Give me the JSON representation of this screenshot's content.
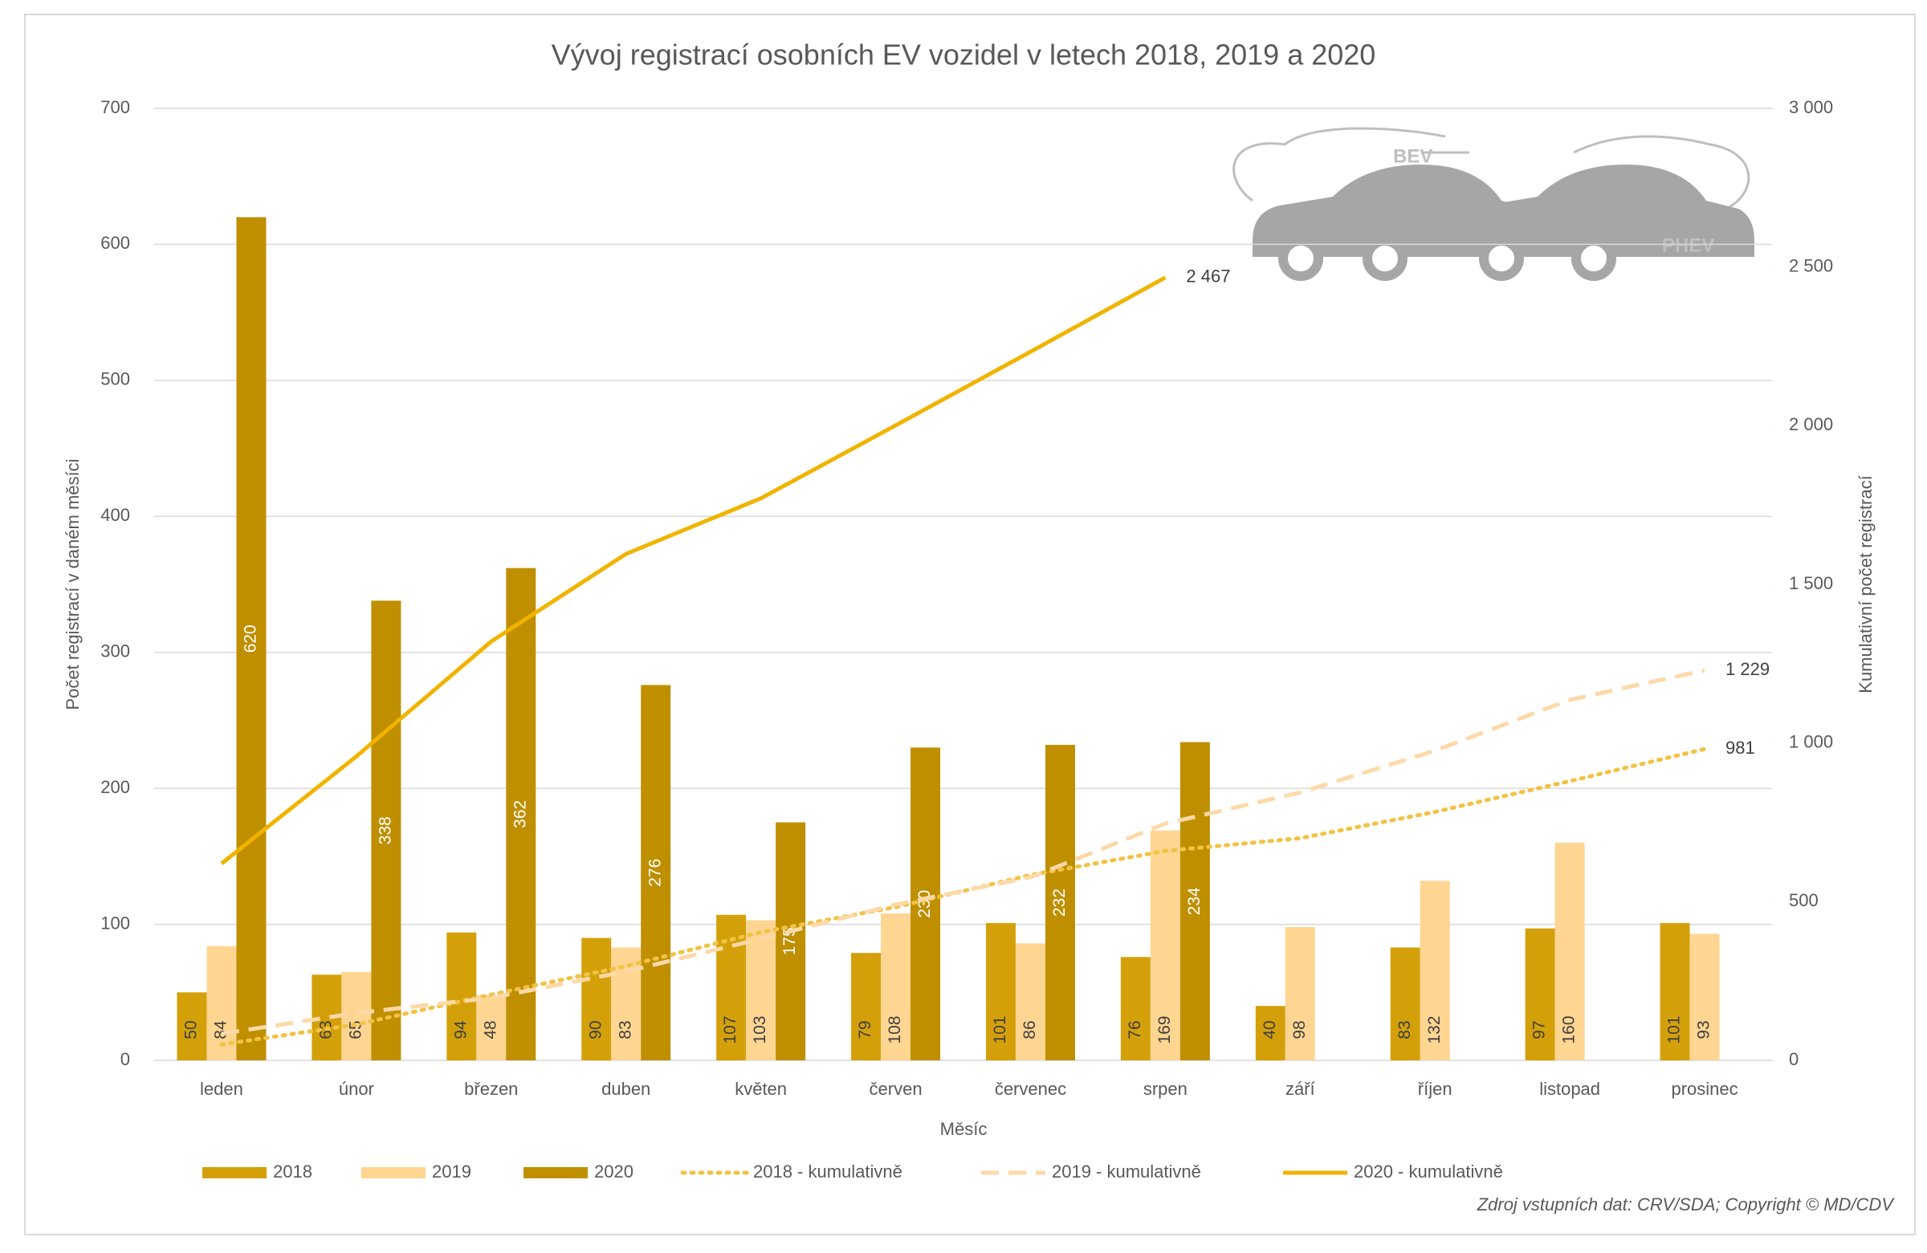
{
  "chart_data": {
    "type": "bar_line",
    "title": "Vývoj registrací osobních EV vozidel v letech 2018, 2019 a 2020",
    "x_label": "Měsíc",
    "y_label": "Počet registrací v daném měsíci",
    "y2_label": "Kumulativní počet registrací",
    "source": "Zdroj vstupních dat: CRV/SDA; Copyright © MD/CDV",
    "icon_labels": [
      "BEV",
      "PHEV"
    ],
    "categories": [
      "leden",
      "únor",
      "březen",
      "duben",
      "květen",
      "červen",
      "červenec",
      "srpen",
      "září",
      "říjen",
      "listopad",
      "prosinec"
    ],
    "series": [
      {
        "name": "2018",
        "kind": "bar",
        "color": "#d4a00a",
        "values": [
          50,
          63,
          94,
          90,
          107,
          79,
          101,
          76,
          40,
          83,
          97,
          101
        ]
      },
      {
        "name": "2019",
        "kind": "bar",
        "color": "#ffd592",
        "values": [
          84,
          65,
          48,
          83,
          103,
          108,
          86,
          169,
          98,
          132,
          160,
          93
        ]
      },
      {
        "name": "2020",
        "kind": "bar",
        "color": "#bf8f00",
        "values": [
          620,
          338,
          362,
          276,
          175,
          230,
          232,
          234,
          null,
          null,
          null,
          null
        ]
      },
      {
        "name": "2018 - kumulativně",
        "kind": "line",
        "dash": "dotted",
        "axis": "y2",
        "color": "#f2c244",
        "values": [
          50,
          113,
          207,
          297,
          404,
          483,
          584,
          660,
          700,
          783,
          880,
          981
        ],
        "value_labels": [
          null,
          null,
          null,
          null,
          null,
          null,
          null,
          null,
          null,
          null,
          null,
          "981"
        ]
      },
      {
        "name": "2019 - kumulativně",
        "kind": "line",
        "dash": "dashed",
        "axis": "y2",
        "color": "#fdd9a8",
        "values": [
          84,
          149,
          197,
          280,
          383,
          491,
          577,
          746,
          844,
          976,
          1136,
          1229
        ],
        "value_labels": [
          null,
          null,
          null,
          null,
          null,
          null,
          null,
          null,
          null,
          null,
          null,
          "1 229"
        ]
      },
      {
        "name": "2020 - kumulativně",
        "kind": "line",
        "dash": "solid",
        "axis": "y2",
        "color": "#f0b400",
        "values": [
          620,
          958,
          1320,
          1596,
          1771,
          2001,
          2233,
          2467,
          null,
          null,
          null,
          null
        ],
        "value_labels": [
          null,
          null,
          null,
          null,
          null,
          null,
          null,
          "2 467",
          null,
          null,
          null,
          null
        ]
      }
    ],
    "ylim": [
      0,
      700
    ],
    "yticks": [
      0,
      100,
      200,
      300,
      400,
      500,
      600,
      700
    ],
    "y2lim": [
      0,
      3000
    ],
    "y2ticks": [
      0,
      500,
      {
        "value": 1000,
        "label": "1 000"
      },
      {
        "value": 1500,
        "label": "1 500"
      },
      {
        "value": 2000,
        "label": "2 000"
      },
      {
        "value": 2500,
        "label": "2 500"
      },
      {
        "value": 3000,
        "label": "3 000"
      }
    ],
    "grid": true,
    "legend": "bottom"
  }
}
